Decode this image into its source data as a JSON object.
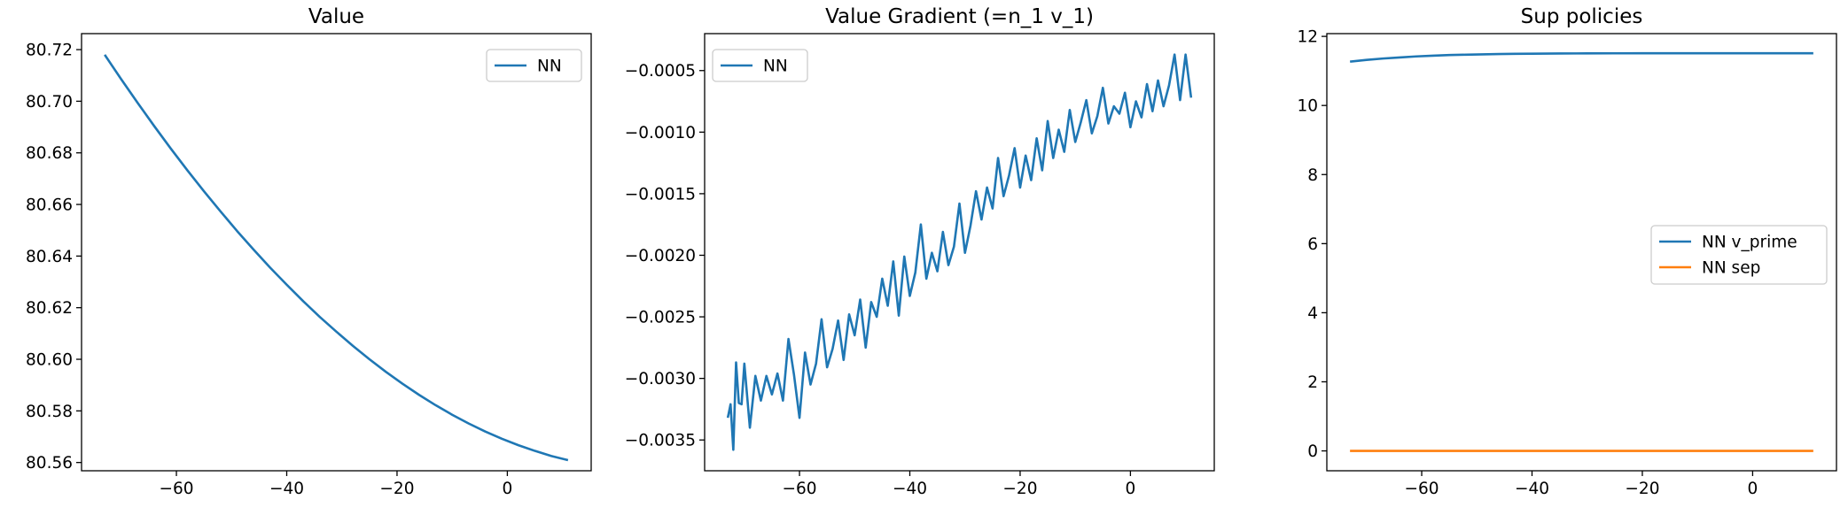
{
  "chart_data": [
    {
      "type": "line",
      "title": "Value",
      "xlabel": "",
      "ylabel": "",
      "xlim": [
        -77.2,
        15.2
      ],
      "ylim": [
        80.5568,
        80.7262
      ],
      "xticks": [
        -60,
        -40,
        -20,
        0
      ],
      "xtick_labels": [
        "−60",
        "−40",
        "−20",
        "0"
      ],
      "yticks": [
        80.56,
        80.58,
        80.6,
        80.62,
        80.64,
        80.66,
        80.68,
        80.7,
        80.72
      ],
      "ytick_labels": [
        "80.56",
        "80.58",
        "80.60",
        "80.62",
        "80.64",
        "80.66",
        "80.68",
        "80.70",
        "80.72"
      ],
      "legend_position": "upper right",
      "series": [
        {
          "name": "NN",
          "color": "#1f77b4",
          "x": [
            -73,
            -70,
            -67,
            -64,
            -61,
            -58,
            -55,
            -52,
            -49,
            -46,
            -43,
            -40,
            -37,
            -34,
            -31,
            -28,
            -25,
            -22,
            -19,
            -16,
            -13,
            -10,
            -7,
            -4,
            -1,
            2,
            5,
            8,
            11
          ],
          "y": [
            80.718,
            80.7085,
            80.6993,
            80.6903,
            80.6816,
            80.6732,
            80.6651,
            80.6573,
            80.6497,
            80.6425,
            80.6355,
            80.6289,
            80.6225,
            80.6164,
            80.6107,
            80.6052,
            80.6,
            80.5951,
            80.5905,
            80.5862,
            80.5822,
            80.5785,
            80.5751,
            80.572,
            80.5692,
            80.5667,
            80.5645,
            80.5625,
            80.5609
          ]
        }
      ]
    },
    {
      "type": "line",
      "title": "Value Gradient (=n_1 v_1)",
      "xlabel": "",
      "ylabel": "",
      "xlim": [
        -77.2,
        15.2
      ],
      "ylim": [
        -0.00375,
        -0.0002
      ],
      "xticks": [
        -60,
        -40,
        -20,
        0
      ],
      "xtick_labels": [
        "−60",
        "−40",
        "−20",
        "0"
      ],
      "yticks": [
        -0.0035,
        -0.003,
        -0.0025,
        -0.002,
        -0.0015,
        -0.001,
        -0.0005
      ],
      "ytick_labels": [
        "−0.0035",
        "−0.0030",
        "−0.0025",
        "−0.0020",
        "−0.0015",
        "−0.0010",
        "−0.0005"
      ],
      "legend_position": "upper left",
      "series": [
        {
          "name": "NN",
          "color": "#1f77b4",
          "x": [
            -73,
            -72.5,
            -72,
            -71.5,
            -71,
            -70.5,
            -70,
            -69,
            -68,
            -67,
            -66,
            -65,
            -64,
            -63,
            -62,
            -61,
            -60,
            -59,
            -58,
            -57,
            -56,
            -55,
            -54,
            -53,
            -52,
            -51,
            -50,
            -49,
            -48,
            -47,
            -46,
            -45,
            -44,
            -43,
            -42,
            -41,
            -40,
            -39,
            -38,
            -37,
            -36,
            -35,
            -34,
            -33,
            -32,
            -31,
            -30,
            -29,
            -28,
            -27,
            -26,
            -25,
            -24,
            -23,
            -22,
            -21,
            -20,
            -19,
            -18,
            -17,
            -16,
            -15,
            -14,
            -13,
            -12,
            -11,
            -10,
            -9,
            -8,
            -7,
            -6,
            -5,
            -4,
            -3,
            -2,
            -1,
            0,
            1,
            2,
            3,
            4,
            5,
            6,
            7,
            8,
            9,
            10,
            11
          ],
          "y": [
            -0.00332,
            -0.00321,
            -0.00358,
            -0.00287,
            -0.0032,
            -0.00321,
            -0.00288,
            -0.0034,
            -0.00298,
            -0.00318,
            -0.00298,
            -0.00313,
            -0.00296,
            -0.00318,
            -0.00268,
            -0.00297,
            -0.00332,
            -0.00279,
            -0.00305,
            -0.00288,
            -0.00252,
            -0.00291,
            -0.00276,
            -0.00253,
            -0.00285,
            -0.00248,
            -0.00265,
            -0.00236,
            -0.00275,
            -0.00238,
            -0.0025,
            -0.00219,
            -0.00241,
            -0.00205,
            -0.00249,
            -0.00201,
            -0.00233,
            -0.00214,
            -0.00175,
            -0.00219,
            -0.00198,
            -0.00213,
            -0.00181,
            -0.00208,
            -0.00193,
            -0.00158,
            -0.00198,
            -0.00176,
            -0.00148,
            -0.00171,
            -0.00145,
            -0.00162,
            -0.00121,
            -0.00152,
            -0.00135,
            -0.00113,
            -0.00145,
            -0.00119,
            -0.00139,
            -0.00105,
            -0.00131,
            -0.00091,
            -0.00121,
            -0.00098,
            -0.00116,
            -0.00082,
            -0.00108,
            -0.00092,
            -0.00074,
            -0.00101,
            -0.00087,
            -0.00064,
            -0.00093,
            -0.00079,
            -0.00085,
            -0.00068,
            -0.00096,
            -0.00075,
            -0.00088,
            -0.00061,
            -0.00083,
            -0.00058,
            -0.00079,
            -0.00062,
            -0.00037,
            -0.00074,
            -0.00037,
            -0.00072
          ]
        }
      ]
    },
    {
      "type": "line",
      "title": "Sup policies",
      "xlabel": "",
      "ylabel": "",
      "xlim": [
        -77.2,
        15.2
      ],
      "ylim": [
        -0.575,
        12.08
      ],
      "xticks": [
        -60,
        -40,
        -20,
        0
      ],
      "xtick_labels": [
        "−60",
        "−40",
        "−20",
        "0"
      ],
      "yticks": [
        0,
        2,
        4,
        6,
        8,
        10,
        12
      ],
      "ytick_labels": [
        "0",
        "2",
        "4",
        "6",
        "8",
        "10",
        "12"
      ],
      "legend_position": "center right",
      "series": [
        {
          "name": "NN v_prime",
          "color": "#1f77b4",
          "x": [
            -73,
            -70,
            -67,
            -64,
            -61,
            -58,
            -55,
            -52,
            -49,
            -46,
            -43,
            -40,
            -35,
            -30,
            -25,
            -20,
            -15,
            -10,
            -5,
            0,
            5,
            11
          ],
          "y": [
            11.27,
            11.32,
            11.36,
            11.39,
            11.42,
            11.44,
            11.46,
            11.47,
            11.48,
            11.49,
            11.495,
            11.5,
            11.505,
            11.508,
            11.51,
            11.511,
            11.512,
            11.512,
            11.512,
            11.512,
            11.512,
            11.512
          ]
        },
        {
          "name": "NN sep",
          "color": "#ff7f0e",
          "x": [
            -73,
            11
          ],
          "y": [
            0.0,
            0.0
          ]
        }
      ]
    }
  ]
}
